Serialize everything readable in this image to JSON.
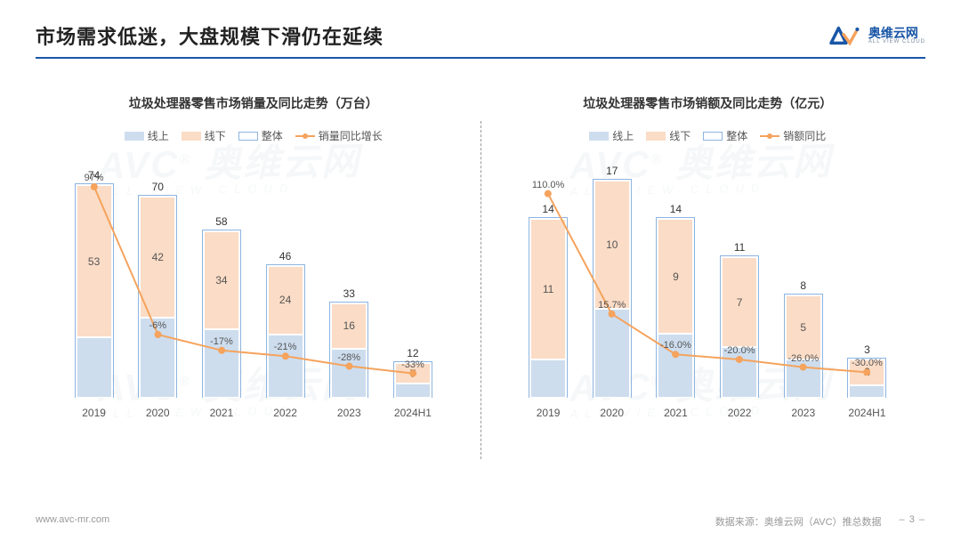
{
  "page": {
    "title": "市场需求低迷，大盘规模下滑仍在延续",
    "watermark_main": "AVC 奥维云网",
    "watermark_sub": "ALL VIEW CLOUD"
  },
  "logo": {
    "cn": "奥维云网",
    "en": "ALL VIEW CLOUD"
  },
  "colors": {
    "online": "#cdddee",
    "offline": "#fbdcc6",
    "total_border": "#8db4e0",
    "growth_line": "#f5a35d",
    "title_rule": "#1956a6",
    "bg": "#ffffff",
    "text": "#555555"
  },
  "legend": {
    "items_left": [
      "线上",
      "线下",
      "整体",
      "销量同比增长"
    ],
    "items_right": [
      "线上",
      "线下",
      "整体",
      "销额同比"
    ]
  },
  "chart_left": {
    "title": "垃圾处理器零售市场销量及同比走势（万台）",
    "y_max": 80,
    "categories": [
      "2019",
      "2020",
      "2021",
      "2022",
      "2023",
      "2024H1"
    ],
    "online": [
      21,
      28,
      24,
      22,
      17,
      5
    ],
    "offline": [
      53,
      42,
      34,
      24,
      16,
      7
    ],
    "total": [
      74,
      70,
      58,
      46,
      33,
      12
    ],
    "growth": [
      "97%",
      "-6%",
      "-17%",
      "-21%",
      "-28%",
      "-33%"
    ],
    "growth_y": [
      97,
      -6,
      -17,
      -21,
      -28,
      -33
    ],
    "growth_range": [
      -50,
      110
    ]
  },
  "chart_right": {
    "title": "垃圾处理器零售市场销额及同比走势（亿元）",
    "y_max": 18,
    "categories": [
      "2019",
      "2020",
      "2021",
      "2022",
      "2023",
      "2024H1"
    ],
    "online": [
      3,
      7,
      5,
      4,
      3,
      1
    ],
    "offline": [
      11,
      10,
      9,
      7,
      5,
      2
    ],
    "total": [
      14,
      17,
      14,
      11,
      8,
      3
    ],
    "growth": [
      "110.0%",
      "15.7%",
      "-16.0%",
      "-20.0%",
      "-26.0%",
      "-30.0%"
    ],
    "growth_y": [
      110,
      15.7,
      -16,
      -20,
      -26,
      -30
    ],
    "growth_range": [
      -50,
      130
    ]
  },
  "footer": {
    "url": "www.avc-mr.com",
    "source": "数据来源：奥维云网（AVC）推总数据",
    "page_num": "– 3 –"
  }
}
